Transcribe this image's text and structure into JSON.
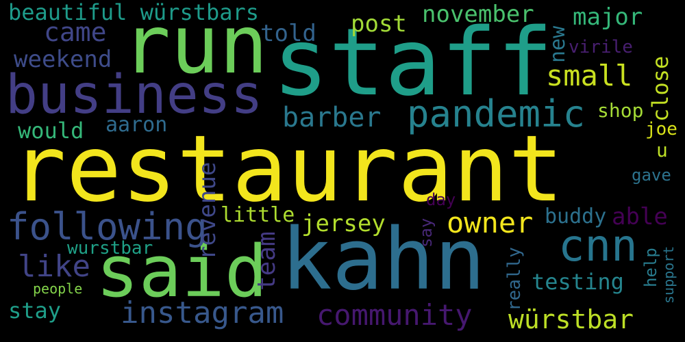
{
  "words": [
    {
      "text": "restaurant",
      "color": "#f2e51d",
      "vertical": false
    },
    {
      "text": "staff",
      "color": "#1f9e89",
      "vertical": false
    },
    {
      "text": "run",
      "color": "#6ccd5a",
      "vertical": false
    },
    {
      "text": "kahn",
      "color": "#2d6e8e",
      "vertical": false
    },
    {
      "text": "said",
      "color": "#6ccd5a",
      "vertical": false
    },
    {
      "text": "business",
      "color": "#433e85",
      "vertical": false
    },
    {
      "text": "pandemic",
      "color": "#26828e",
      "vertical": false
    },
    {
      "text": "cnn",
      "color": "#27758e",
      "vertical": false
    },
    {
      "text": "following",
      "color": "#3b528b",
      "vertical": false
    },
    {
      "text": "instagram",
      "color": "#38588c",
      "vertical": false
    },
    {
      "text": "community",
      "color": "#46186f",
      "vertical": false
    },
    {
      "text": "würstbar",
      "color": "#bddf26",
      "vertical": false
    },
    {
      "text": "owner",
      "color": "#f2e51d",
      "vertical": false
    },
    {
      "text": "small",
      "color": "#c9e020",
      "vertical": false
    },
    {
      "text": "barber",
      "color": "#2a788e",
      "vertical": false
    },
    {
      "text": "came",
      "color": "#404688",
      "vertical": false
    },
    {
      "text": "beautiful würstbars",
      "color": "#1e9b8a",
      "vertical": false
    },
    {
      "text": "november",
      "color": "#4ac16d",
      "vertical": false
    },
    {
      "text": "major",
      "color": "#35b779",
      "vertical": false
    },
    {
      "text": "post",
      "color": "#a2da37",
      "vertical": false
    },
    {
      "text": "told",
      "color": "#33638d",
      "vertical": false
    },
    {
      "text": "weekend",
      "color": "#3e4c8a",
      "vertical": false
    },
    {
      "text": "virile",
      "color": "#481f70",
      "vertical": false
    },
    {
      "text": "would",
      "color": "#35b779",
      "vertical": false
    },
    {
      "text": "aaron",
      "color": "#2f6b8e",
      "vertical": false
    },
    {
      "text": "shop",
      "color": "#a5db36",
      "vertical": false
    },
    {
      "text": "joe",
      "color": "#d8e219",
      "vertical": false
    },
    {
      "text": "u",
      "color": "#bddf26",
      "vertical": false
    },
    {
      "text": "gave",
      "color": "#2c738e",
      "vertical": false
    },
    {
      "text": "day",
      "color": "#440154",
      "vertical": false
    },
    {
      "text": "jersey",
      "color": "#b2dd2d",
      "vertical": false
    },
    {
      "text": "little",
      "color": "#addc30",
      "vertical": false
    },
    {
      "text": "buddy",
      "color": "#2c718e",
      "vertical": false
    },
    {
      "text": "able",
      "color": "#440154",
      "vertical": false
    },
    {
      "text": "like",
      "color": "#414487",
      "vertical": false
    },
    {
      "text": "wurstbar",
      "color": "#1fa187",
      "vertical": false
    },
    {
      "text": "testing",
      "color": "#25858e",
      "vertical": false
    },
    {
      "text": "stay",
      "color": "#1f9e89",
      "vertical": false
    },
    {
      "text": "people",
      "color": "#84d44b",
      "vertical": false
    },
    {
      "text": "new",
      "color": "#2a788e",
      "vertical": true
    },
    {
      "text": "close",
      "color": "#c2df23",
      "vertical": true
    },
    {
      "text": "revenue",
      "color": "#3f4889",
      "vertical": true
    },
    {
      "text": "team",
      "color": "#443a83",
      "vertical": true
    },
    {
      "text": "say",
      "color": "#482878",
      "vertical": true
    },
    {
      "text": "really",
      "color": "#31688e",
      "vertical": true
    },
    {
      "text": "help",
      "color": "#287c8e",
      "vertical": true
    },
    {
      "text": "support",
      "color": "#2a768e",
      "vertical": true
    }
  ]
}
